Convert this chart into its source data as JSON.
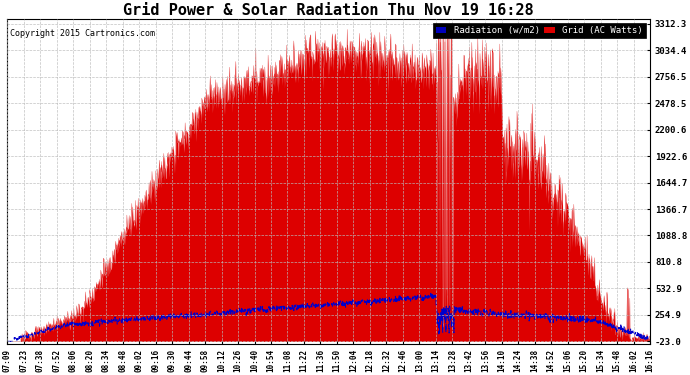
{
  "title": "Grid Power & Solar Radiation Thu Nov 19 16:28",
  "copyright": "Copyright 2015 Cartronics.com",
  "legend_radiation": "Radiation (w/m2)",
  "legend_grid": "Grid (AC Watts)",
  "yticks": [
    3312.3,
    3034.4,
    2756.5,
    2478.5,
    2200.6,
    1922.6,
    1644.7,
    1366.7,
    1088.8,
    810.8,
    532.9,
    254.9,
    -23.0
  ],
  "ymin": -23.0,
  "ymax": 3312.3,
  "background_color": "#ffffff",
  "plot_bg_color": "#ffffff",
  "grid_color": "#bbbbbb",
  "red_color": "#dd0000",
  "blue_color": "#0000cc",
  "title_fontsize": 11,
  "xtick_labels": [
    "07:09",
    "07:23",
    "07:38",
    "07:52",
    "08:06",
    "08:20",
    "08:34",
    "08:48",
    "09:02",
    "09:16",
    "09:30",
    "09:44",
    "09:58",
    "10:12",
    "10:26",
    "10:40",
    "10:54",
    "11:08",
    "11:22",
    "11:36",
    "11:50",
    "12:04",
    "12:18",
    "12:32",
    "12:46",
    "13:00",
    "13:14",
    "13:28",
    "13:42",
    "13:56",
    "14:10",
    "14:24",
    "14:38",
    "14:52",
    "15:06",
    "15:20",
    "15:34",
    "15:48",
    "16:02",
    "16:16"
  ]
}
